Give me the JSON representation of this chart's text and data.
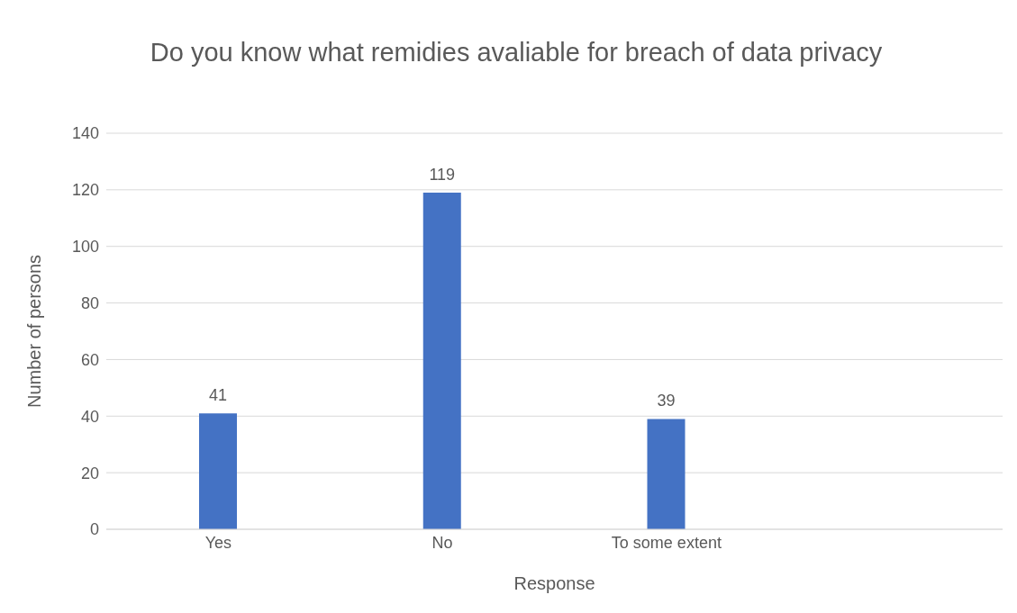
{
  "chart_data": {
    "type": "bar",
    "title": "Do you know what remidies avaliable for breach of data privacy",
    "xlabel": "Response",
    "ylabel": "Number of persons",
    "categories": [
      "Yes",
      "No",
      "To some extent",
      null
    ],
    "values": [
      41,
      119,
      39,
      null
    ],
    "color": "#4472c4",
    "ylim": [
      0,
      140
    ],
    "yticks": [
      0,
      20,
      40,
      60,
      80,
      100,
      120,
      140
    ],
    "grid": "y",
    "data_labels": true
  }
}
